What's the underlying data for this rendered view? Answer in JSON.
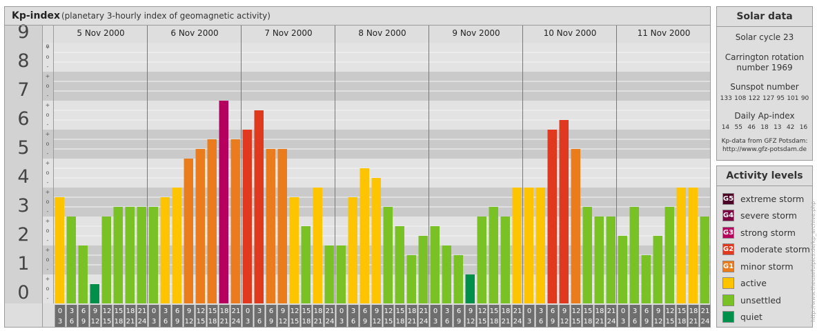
{
  "header": {
    "title": "Kp-index",
    "subtitle": "(planetary 3-hourly index of geomagnetic activity)"
  },
  "solar": {
    "title": "Solar data",
    "cycle": "Solar cycle 23",
    "carrington": "Carrington rotation number 1969",
    "sunspot_label": "Sunspot number",
    "sunspot_values": [
      "133",
      "108",
      "122",
      "127",
      "95",
      "101",
      "90"
    ],
    "ap_label": "Daily Ap-index",
    "ap_values": [
      "14",
      "55",
      "46",
      "18",
      "13",
      "42",
      "16"
    ],
    "source": "Kp-data from GFZ Potsdam: http://www.gfz-potsdam.de"
  },
  "activity": {
    "title": "Activity levels",
    "items": [
      {
        "badge": "G5",
        "label": "extreme storm",
        "color": "#4c0023"
      },
      {
        "badge": "G4",
        "label": "severe storm",
        "color": "#7a0040"
      },
      {
        "badge": "G3",
        "label": "strong storm",
        "color": "#b5005e"
      },
      {
        "badge": "G2",
        "label": "moderate storm",
        "color": "#e0391f"
      },
      {
        "badge": "G1",
        "label": "minor storm",
        "color": "#eb7c1e"
      },
      {
        "badge": "",
        "label": "active",
        "color": "#ffc400"
      },
      {
        "badge": "",
        "label": "unsettled",
        "color": "#79c125"
      },
      {
        "badge": "",
        "label": "quiet",
        "color": "#00904a"
      }
    ]
  },
  "watermark": "http://www.theusefulpics.de/kp_archive.php",
  "chart_data": {
    "type": "bar",
    "title": "Kp-index",
    "subtitle": "(planetary 3-hourly index of geomagnetic activity)",
    "ylim": [
      0,
      9
    ],
    "y_ticks": [
      "0",
      "1",
      "2",
      "3",
      "4",
      "5",
      "6",
      "7",
      "8",
      "9"
    ],
    "y_minor_ticks": [
      "-",
      "o",
      "+"
    ],
    "days": [
      "5 Nov 2000",
      "6 Nov 2000",
      "7 Nov 2000",
      "8 Nov 2000",
      "9 Nov 2000",
      "10 Nov 2000",
      "11 Nov 2000"
    ],
    "interval_labels": [
      [
        "0",
        "3"
      ],
      [
        "3",
        "6"
      ],
      [
        "6",
        "9"
      ],
      [
        "9",
        "12"
      ],
      [
        "12",
        "15"
      ],
      [
        "15",
        "18"
      ],
      [
        "18",
        "21"
      ],
      [
        "21",
        "24"
      ]
    ],
    "series": [
      {
        "values": [
          3.667,
          3.0,
          2.0,
          0.667,
          3.0,
          3.333,
          3.333,
          3.333,
          3.333,
          3.667,
          4.0,
          5.0,
          5.333,
          5.667,
          7.0,
          5.667,
          6.0,
          6.667,
          5.333,
          5.333,
          3.667,
          2.667,
          4.0,
          2.0,
          2.0,
          3.667,
          4.667,
          4.333,
          3.333,
          2.667,
          1.667,
          2.333,
          2.667,
          2.0,
          1.667,
          1.0,
          3.0,
          3.333,
          3.0,
          4.0,
          4.0,
          4.0,
          6.0,
          6.333,
          5.333,
          3.333,
          3.0,
          3.0,
          2.333,
          3.333,
          1.667,
          2.333,
          3.333,
          4.0,
          4.0,
          3.0
        ]
      }
    ],
    "colors": {
      "quiet": "#00904a",
      "unsettled": "#79c125",
      "active": "#ffc400",
      "G1": "#eb7c1e",
      "G2": "#e0391f",
      "G3": "#b5005e",
      "G4": "#7a0040",
      "G5": "#4c0023"
    },
    "grid": true
  }
}
